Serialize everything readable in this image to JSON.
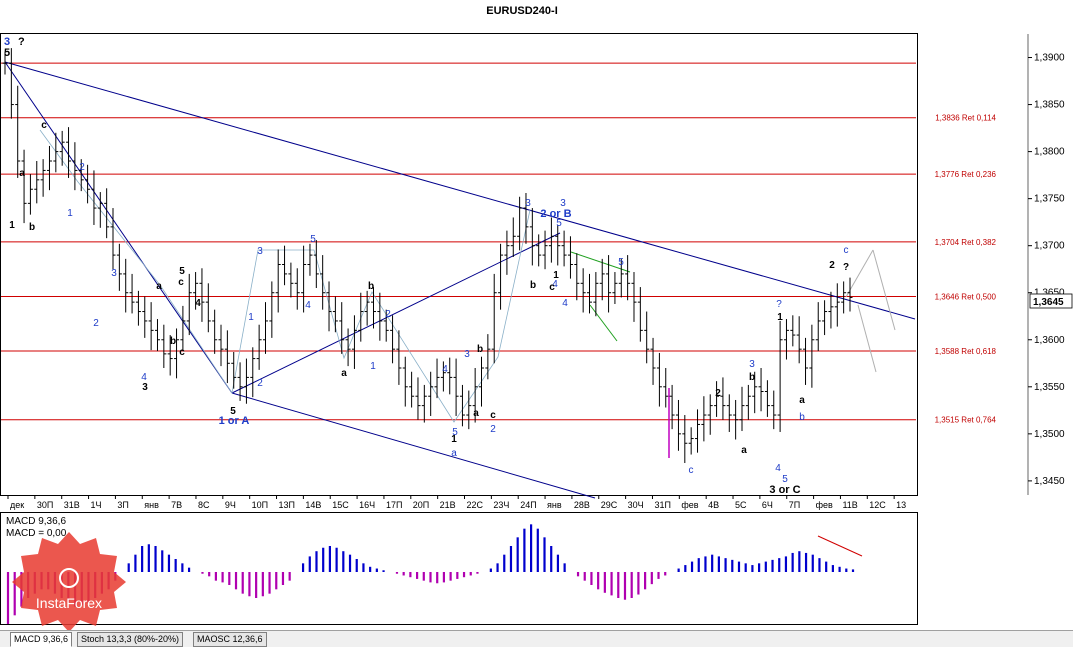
{
  "window": {
    "title": "EURUSD240-I"
  },
  "price_axis": {
    "ticks": [
      "1,3900",
      "1,3850",
      "1,3800",
      "1,3750",
      "1,3700",
      "1,3650",
      "1,3600",
      "1,3550",
      "1,3500",
      "1,3450"
    ],
    "current_price": "1,3645"
  },
  "time_axis": {
    "ticks": [
      "дек",
      "30П",
      "31В",
      "1Ч",
      "3П",
      "янв",
      "7В",
      "8С",
      "9Ч",
      "10П",
      "13П",
      "14В",
      "15С",
      "16Ч",
      "17П",
      "20П",
      "21В",
      "22С",
      "23Ч",
      "24П",
      "янв",
      "28В",
      "29С",
      "30Ч",
      "31П",
      "фев",
      "4В",
      "5С",
      "6Ч",
      "7П",
      "фев",
      "11В",
      "12С",
      "13"
    ]
  },
  "fib_levels": [
    {
      "price": 1.3894,
      "label": ""
    },
    {
      "price": 1.3836,
      "label": "1,3836 Ret 0,114"
    },
    {
      "price": 1.3776,
      "label": "1,3776 Ret 0,236"
    },
    {
      "price": 1.3704,
      "label": "1,3704 Ret 0,382"
    },
    {
      "price": 1.3646,
      "label": "1,3646 Ret 0,500"
    },
    {
      "price": 1.3588,
      "label": "1,3588 Ret 0,618"
    },
    {
      "price": 1.3515,
      "label": "1,3515 Ret 0,764"
    }
  ],
  "wave_labels": {
    "top_left": [
      "3",
      "5",
      "?"
    ],
    "labels": [
      "1",
      "a",
      "b",
      "c",
      "2",
      "1",
      "2",
      "3",
      "4",
      "5",
      "3",
      "4",
      "c",
      "a",
      "b",
      "1",
      "2",
      "3",
      "4",
      "5",
      "5",
      "1 or A",
      "a",
      "b",
      "c",
      "1",
      "2",
      "3",
      "4",
      "5",
      "a",
      "b",
      "c",
      "1",
      "2",
      "3",
      "4",
      "5",
      "a",
      "b",
      "c",
      "2 or B",
      "3",
      "4",
      "5",
      "1",
      "2",
      "a",
      "b",
      "c",
      "3",
      "4",
      "5",
      "3 or C",
      "?",
      "1",
      "a",
      "b",
      "2",
      "?",
      "c",
      "3"
    ]
  },
  "indicator": {
    "line1": "MACD 9,36,6",
    "line2": "MACD = 0,00"
  },
  "watermark": {
    "brand": "InstaForex"
  },
  "tabs": [
    "MACD 9,36,6",
    "Stoch 13,3,3 (80%-20%)",
    "MAOSC 12,36,6"
  ],
  "colors": {
    "fib": "#d00000",
    "trendline": "#00008b",
    "wave_blue": "#1e3cc8",
    "macd_pos": "#0000cd",
    "macd_neg": "#b000b0",
    "watermark": "#e8392f"
  },
  "chart_data": {
    "type": "candlestick",
    "title": "EURUSD240-I",
    "ylim": [
      1.3435,
      1.3925
    ],
    "grid": false,
    "series": [
      {
        "name": "EURUSD240-I",
        "close": [
          1.3894,
          1.385,
          1.379,
          1.3745,
          1.376,
          1.377,
          1.378,
          1.379,
          1.38,
          1.381,
          1.379,
          1.378,
          1.377,
          1.376,
          1.374,
          1.3745,
          1.372,
          1.369,
          1.367,
          1.365,
          1.364,
          1.363,
          1.362,
          1.361,
          1.36,
          1.3585,
          1.358,
          1.36,
          1.362,
          1.365,
          1.366,
          1.364,
          1.362,
          1.36,
          1.359,
          1.3575,
          1.356,
          1.355,
          1.356,
          1.358,
          1.36,
          1.362,
          1.365,
          1.368,
          1.367,
          1.366,
          1.365,
          1.368,
          1.369,
          1.367,
          1.365,
          1.363,
          1.362,
          1.36,
          1.359,
          1.361,
          1.363,
          1.364,
          1.363,
          1.362,
          1.361,
          1.359,
          1.357,
          1.355,
          1.354,
          1.353,
          1.354,
          1.355,
          1.356,
          1.3565,
          1.356,
          1.354,
          1.352,
          1.353,
          1.355,
          1.357,
          1.359,
          1.365,
          1.369,
          1.37,
          1.371,
          1.374,
          1.372,
          1.37,
          1.369,
          1.37,
          1.371,
          1.37,
          1.369,
          1.368,
          1.366,
          1.365,
          1.364,
          1.366,
          1.367,
          1.365,
          1.366,
          1.367,
          1.366,
          1.364,
          1.361,
          1.359,
          1.357,
          1.355,
          1.354,
          1.352,
          1.35,
          1.349,
          1.3495,
          1.351,
          1.352,
          1.353,
          1.354,
          1.353,
          1.352,
          1.3515,
          1.353,
          1.354,
          1.355,
          1.3545,
          1.353,
          1.352,
          1.36,
          1.361,
          1.3605,
          1.359,
          1.357,
          1.36,
          1.362,
          1.363,
          1.3635,
          1.364,
          1.365,
          1.3645
        ]
      }
    ],
    "macd": [
      -0.06,
      -0.05,
      -0.04,
      -0.03,
      -0.025,
      -0.02,
      -0.02,
      -0.025,
      -0.03,
      -0.035,
      -0.04,
      -0.038,
      -0.035,
      -0.03,
      -0.025,
      -0.02,
      -0.01,
      0.0,
      0.01,
      0.02,
      0.03,
      0.032,
      0.03,
      0.025,
      0.02,
      0.015,
      0.01,
      0.005,
      0.0,
      -0.002,
      -0.005,
      -0.01,
      -0.012,
      -0.015,
      -0.02,
      -0.025,
      -0.028,
      -0.03,
      -0.028,
      -0.025,
      -0.02,
      -0.015,
      -0.01,
      0.0,
      0.01,
      0.018,
      0.024,
      0.028,
      0.03,
      0.028,
      0.024,
      0.02,
      0.015,
      0.01,
      0.006,
      0.004,
      0.002,
      0.0,
      -0.002,
      -0.004,
      -0.006,
      -0.008,
      -0.01,
      -0.012,
      -0.013,
      -0.012,
      -0.01,
      -0.008,
      -0.006,
      -0.004,
      -0.002,
      0.0,
      0.004,
      0.01,
      0.02,
      0.03,
      0.04,
      0.05,
      0.055,
      0.05,
      0.04,
      0.03,
      0.02,
      0.01,
      0.0,
      -0.005,
      -0.01,
      -0.015,
      -0.02,
      -0.024,
      -0.027,
      -0.03,
      -0.032,
      -0.03,
      -0.026,
      -0.02,
      -0.014,
      -0.008,
      -0.004,
      0.0,
      0.004,
      0.008,
      0.012,
      0.016,
      0.018,
      0.02,
      0.018,
      0.016,
      0.014,
      0.012,
      0.01,
      0.008,
      0.01,
      0.012,
      0.014,
      0.016,
      0.018,
      0.022,
      0.024,
      0.022,
      0.02,
      0.016,
      0.012,
      0.008,
      0.006,
      0.004,
      0.003
    ]
  }
}
